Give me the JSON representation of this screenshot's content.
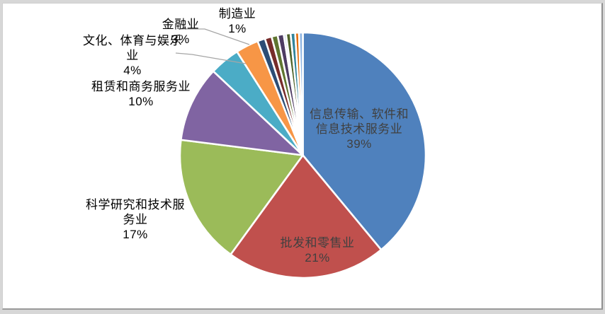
{
  "frame": {
    "background_color": "#d7d7d7",
    "canvas_color": "#ffffff"
  },
  "chart_data": {
    "type": "pie",
    "title": "",
    "legend": "none",
    "direction": "clockwise",
    "start_angle_deg": 0,
    "total": 100,
    "inside_label_color": "#404040",
    "outside_label_color": "#000000",
    "leader_line_color": "#a6a6a6",
    "slice_border_color": "#ffffff",
    "slices": [
      {
        "label": "信息传输、软件和信息技术服务业",
        "value": 39,
        "pct_label": "39%",
        "color": "#4F81BD",
        "placement": "inside",
        "label_lines": [
          "信息传输、软件和",
          "信息技术服务业",
          "39%"
        ]
      },
      {
        "label": "批发和零售业",
        "value": 21,
        "pct_label": "21%",
        "color": "#C0504D",
        "placement": "inside",
        "label_lines": [
          "批发和零售业",
          "21%"
        ]
      },
      {
        "label": "科学研究和技术服务业",
        "value": 17,
        "pct_label": "17%",
        "color": "#9BBB59",
        "placement": "outside",
        "label_lines": [
          "科学研究和技术服",
          "务业",
          "17%"
        ]
      },
      {
        "label": "租赁和商务服务业",
        "value": 10,
        "pct_label": "10%",
        "color": "#8064A2",
        "placement": "outside",
        "label_lines": [
          "租赁和商务服务业",
          "10%"
        ]
      },
      {
        "label": "文化、体育与娱乐业",
        "value": 4,
        "pct_label": "4%",
        "color": "#4BACC6",
        "placement": "outside",
        "label_lines": [
          "文化、体育与娱乐",
          "业",
          "4%"
        ],
        "leader_line": true
      },
      {
        "label": "金融业",
        "value": 3,
        "pct_label": "3%",
        "color": "#F79646",
        "placement": "outside",
        "label_lines": [
          "金融业",
          "3%"
        ],
        "leader_line": true
      },
      {
        "label": "制造业",
        "value": 1,
        "pct_label": "1%",
        "color": "#2C4D75",
        "placement": "outside",
        "label_lines": [
          "制造业",
          "1%"
        ]
      },
      {
        "label": "",
        "value": 0.9,
        "pct_label": "",
        "color": "#772C2A",
        "placement": "none",
        "label_lines": []
      },
      {
        "label": "",
        "value": 0.8,
        "pct_label": "",
        "color": "#5F7530",
        "placement": "none",
        "label_lines": []
      },
      {
        "label": "",
        "value": 0.8,
        "pct_label": "",
        "color": "#4D3B62",
        "placement": "none",
        "label_lines": []
      },
      {
        "label": "",
        "value": 0.3,
        "pct_label": "",
        "color": "#95B3D7",
        "placement": "none",
        "label_lines": []
      },
      {
        "label": "",
        "value": 0.6,
        "pct_label": "",
        "color": "#4F6228",
        "placement": "none",
        "label_lines": []
      },
      {
        "label": "",
        "value": 0.6,
        "pct_label": "",
        "color": "#31849B",
        "placement": "none",
        "label_lines": []
      },
      {
        "label": "",
        "value": 0.5,
        "pct_label": "",
        "color": "#E46C0A",
        "placement": "none",
        "label_lines": []
      },
      {
        "label": "",
        "value": 0.5,
        "pct_label": "",
        "color": "#8DB4E2",
        "placement": "none",
        "label_lines": []
      }
    ]
  }
}
